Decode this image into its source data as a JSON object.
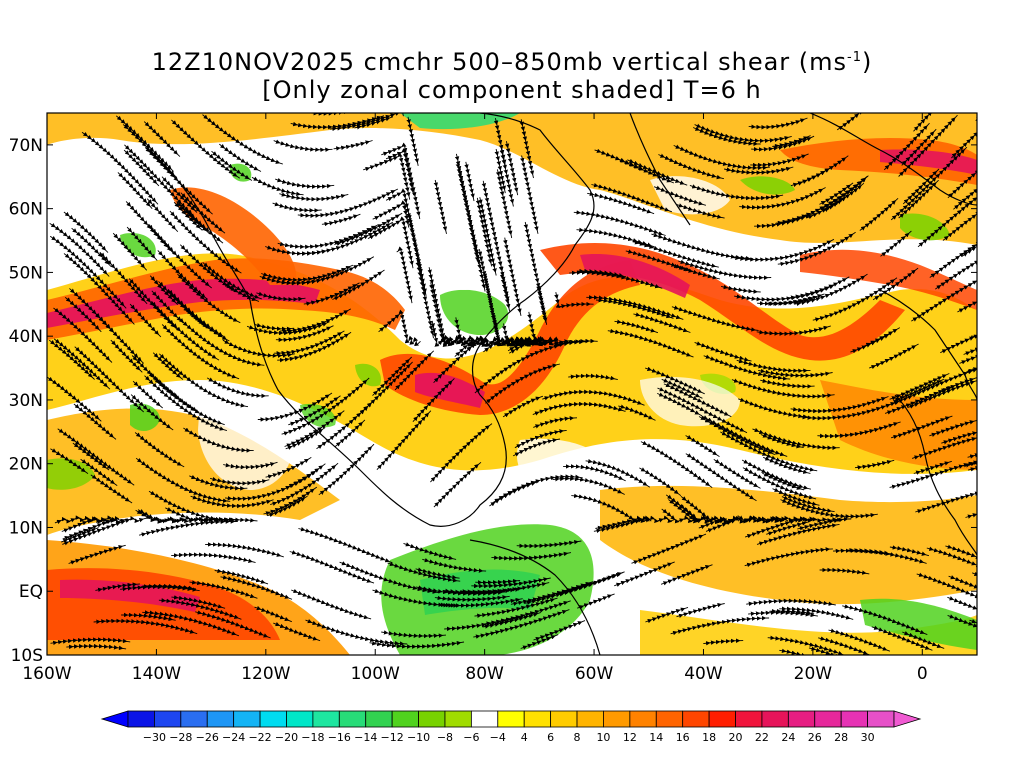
{
  "title": {
    "line1_prefix": "12Z10NOV2025 cmchr 500–850mb vertical shear (ms",
    "line1_sup": "-1",
    "line1_suffix": ")",
    "line2": "[Only zonal component shaded] T=6 h"
  },
  "map_region": {
    "lon_min": -160,
    "lon_max": 10,
    "lat_min": -10,
    "lat_max": 75
  },
  "axes": {
    "lat_labels": [
      {
        "lat": 70,
        "text": "70N"
      },
      {
        "lat": 60,
        "text": "60N"
      },
      {
        "lat": 50,
        "text": "50N"
      },
      {
        "lat": 40,
        "text": "40N"
      },
      {
        "lat": 30,
        "text": "30N"
      },
      {
        "lat": 20,
        "text": "20N"
      },
      {
        "lat": 10,
        "text": "10N"
      },
      {
        "lat": 0,
        "text": "EQ"
      },
      {
        "lat": -10,
        "text": "10S"
      }
    ],
    "lon_labels": [
      {
        "lon": -160,
        "text": "160W"
      },
      {
        "lon": -140,
        "text": "140W"
      },
      {
        "lon": -120,
        "text": "120W"
      },
      {
        "lon": -100,
        "text": "100W"
      },
      {
        "lon": -80,
        "text": "80W"
      },
      {
        "lon": -60,
        "text": "60W"
      },
      {
        "lon": -40,
        "text": "40W"
      },
      {
        "lon": -20,
        "text": "20W"
      },
      {
        "lon": 0,
        "text": "0"
      }
    ]
  },
  "colorbar": {
    "labels": [
      "−30",
      "−28",
      "−26",
      "−24",
      "−22",
      "−20",
      "−18",
      "−16",
      "−14",
      "−12",
      "−10",
      "−8",
      "−6",
      "−4",
      "4",
      "6",
      "8",
      "10",
      "12",
      "14",
      "16",
      "18",
      "20",
      "22",
      "24",
      "26",
      "28",
      "30"
    ],
    "colors": [
      "#0a14e6",
      "#1e46f0",
      "#2a6ef0",
      "#1e96f5",
      "#14b4f5",
      "#00dcf0",
      "#00e6c8",
      "#1ee6a0",
      "#28dc78",
      "#32d250",
      "#50d21e",
      "#78d200",
      "#a0dc00",
      "#ffffff",
      "#ffff00",
      "#ffe100",
      "#ffcc00",
      "#ffb400",
      "#ff9a00",
      "#ff8200",
      "#ff6400",
      "#ff4600",
      "#ff1e00",
      "#f0143c",
      "#e6145a",
      "#e61e82",
      "#e6289b",
      "#e632b4",
      "#e650c8"
    ],
    "left_arrow_color": "#0000ff",
    "right_arrow_color": "#f05ad2"
  }
}
